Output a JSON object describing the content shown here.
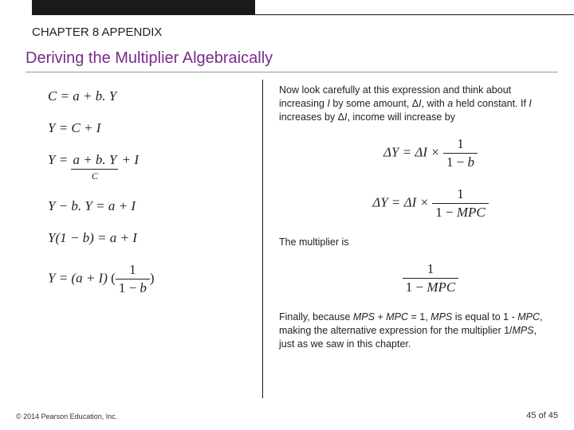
{
  "header": {
    "chapter_label": "CHAPTER 8 APPENDIX",
    "section_title": "Deriving the Multiplier Algebraically",
    "top_bar_color": "#1a1a1a",
    "title_color": "#7a2a8a"
  },
  "left_equations": {
    "eq1": "C = a + b. Y",
    "eq2": "Y = C + I",
    "eq3_top": "a + b. Y",
    "eq3_label": "C",
    "eq3_rest": " + I",
    "eq3_prefix": "Y = ",
    "eq4": "Y − b. Y = a + I",
    "eq5": "Y(1 − b) = a + I",
    "eq6_lhs": "Y = (a + I)",
    "eq6_num": "1",
    "eq6_den": "1 − b"
  },
  "right": {
    "para1_a": "Now look carefully at this expression and think about increasing ",
    "para1_ital1": "I",
    "para1_b": " by some amount, Δ",
    "para1_ital2": "I",
    "para1_c": ", with ",
    "para1_ital3": "a",
    "para1_d": " held constant. If ",
    "para1_ital4": "I",
    "para1_e": " increases by Δ",
    "para1_ital5": "I",
    "para1_f": ", income will increase by",
    "eq_r1_lhs": "ΔY = ΔI × ",
    "eq_r1_num": "1",
    "eq_r1_den": "1 − b",
    "eq_r2_lhs": "ΔY = ΔI × ",
    "eq_r2_num": "1",
    "eq_r2_den_a": "1 − ",
    "eq_r2_den_b": "MPC",
    "para2": "The multiplier is",
    "eq_r3_num": "1",
    "eq_r3_den_a": "1 − ",
    "eq_r3_den_b": "MPC",
    "para3_a": "Finally, because ",
    "para3_ital1": "MPS",
    "para3_b": " + ",
    "para3_ital2": "MPC",
    "para3_c": " = 1, ",
    "para3_ital3": "MPS",
    "para3_d": " is equal to 1 - ",
    "para3_ital4": "MPC",
    "para3_e": ", making the alternative expression for the multiplier 1/",
    "para3_ital5": "MPS",
    "para3_f": ", just as we saw in this chapter."
  },
  "footer": {
    "copyright": "© 2014 Pearson Education, Inc.",
    "page": "45 of 45"
  }
}
